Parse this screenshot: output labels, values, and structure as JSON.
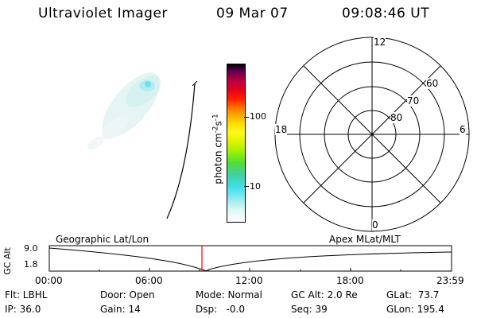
{
  "header": {
    "title": "Ultraviolet Imager",
    "date": "09 Mar 07",
    "time": "09:08:46 UT"
  },
  "colorbar": {
    "label_main": "photon cm",
    "label_exp1": "-2",
    "label_mid": "s",
    "label_exp2": "-1",
    "ticks": [
      "100",
      "10"
    ],
    "colors": [
      "#ffffff",
      "#d9f7f4",
      "#8ee8f0",
      "#3ee0ea",
      "#42d0a0",
      "#52e030",
      "#a6f000",
      "#e6f400",
      "#fff820",
      "#ffe000",
      "#ffb000",
      "#ff7800",
      "#ff2000",
      "#e0001e",
      "#c00040",
      "#8a0040",
      "#5a0050",
      "#2a0040",
      "#000000"
    ]
  },
  "polar": {
    "labels_mlt": [
      "12",
      "18",
      "6",
      "0"
    ],
    "labels_lat": [
      "60",
      "70",
      "80"
    ]
  },
  "timeline": {
    "ylabel": "GC Alt",
    "yticks": [
      "9.0",
      "1.8"
    ],
    "left_title": "Geographic Lat/Lon",
    "right_title": "Apex MLat/MLT",
    "xticks": [
      "00:00",
      "06:00",
      "12:00",
      "18:00",
      "23:59"
    ],
    "current_marker_color": "#ff0000"
  },
  "footer": {
    "c1": [
      "Flt: LBHL",
      "IP: 36.0"
    ],
    "c2": [
      "Door: Open",
      "Gain: 14"
    ],
    "c3": [
      "Mode: Normal",
      "Dsp:   -0.0"
    ],
    "c4": [
      "GC Alt: 2.0 Re",
      "Seq: 39"
    ],
    "c5": [
      "GLat:  73.7",
      "GLon: 195.4"
    ]
  }
}
